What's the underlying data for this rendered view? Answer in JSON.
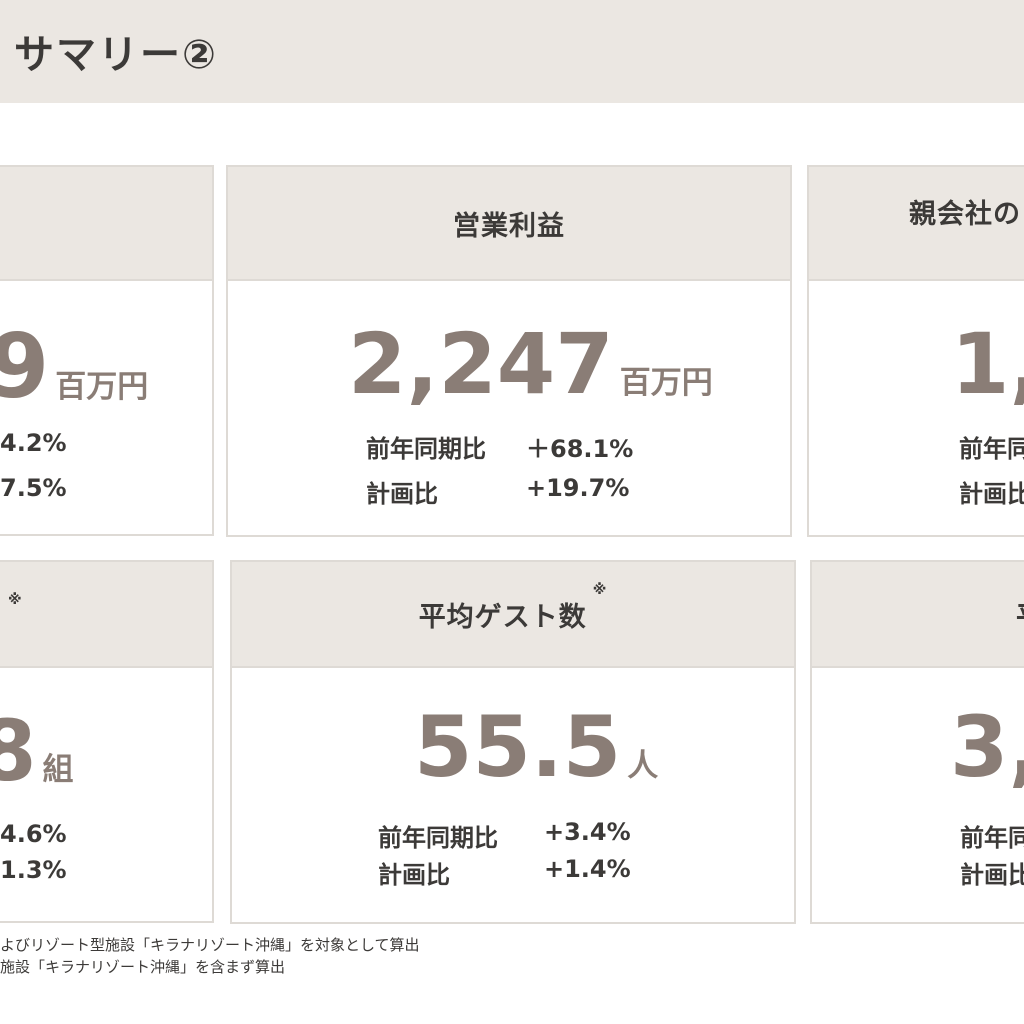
{
  "header": {
    "title": "サマリー②"
  },
  "cards": {
    "top_left": {
      "value": "9",
      "unit": "百万円",
      "stat1_value": "4.2%",
      "stat2_value": "7.5%"
    },
    "top_mid": {
      "title": "営業利益",
      "value": "2,247",
      "unit": "百万円",
      "stat1_label": "前年同期比",
      "stat1_value": "＋68.1%",
      "stat2_label": "計画比",
      "stat2_value": "+19.7%"
    },
    "top_right": {
      "title": "親会社の",
      "value": "1,",
      "stat1_label": "前年同",
      "stat2_label": "計画比"
    },
    "bottom_left": {
      "note_mark": "※",
      "value": "8",
      "unit": "組",
      "stat1_value": "4.6%",
      "stat2_value": "1.3%"
    },
    "bottom_mid": {
      "title": "平均ゲスト数",
      "note_mark": "※",
      "value": "55.5",
      "unit": "人",
      "stat1_label": "前年同期比",
      "stat1_value": "+3.4%",
      "stat2_label": "計画比",
      "stat2_value": "+1.4%"
    },
    "bottom_right": {
      "title_fragment": "平",
      "value": "3,",
      "stat1_label": "前年同",
      "stat2_label": "計画比"
    }
  },
  "footnotes": [
    "よびリゾート型施設「キラナリゾート沖縄」を対象として算出",
    "施設「キラナリゾート沖縄」を含まず算出"
  ]
}
